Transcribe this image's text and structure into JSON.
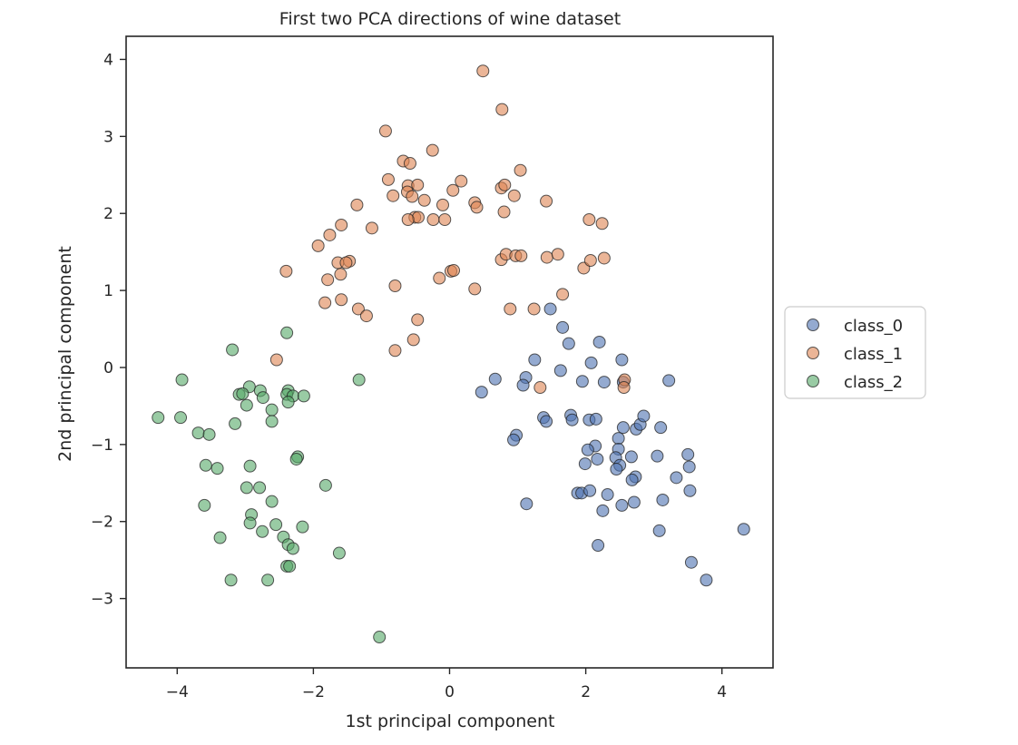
{
  "chart_data": {
    "type": "scatter",
    "title": "First two PCA directions of wine dataset",
    "xlabel": "1st principal component",
    "ylabel": "2nd principal component",
    "xlim": [
      -4.75,
      4.75
    ],
    "ylim": [
      -3.9,
      4.3
    ],
    "xticks": [
      -4,
      -2,
      0,
      2,
      4
    ],
    "yticks": [
      -3,
      -2,
      -1,
      0,
      1,
      2,
      3,
      4
    ],
    "grid": false,
    "legend_position": "outside right, center",
    "series": [
      {
        "name": "class_0",
        "color": "#4c72b0",
        "points": [
          [
            1.48,
            0.76
          ],
          [
            1.66,
            0.52
          ],
          [
            1.75,
            0.31
          ],
          [
            2.2,
            0.33
          ],
          [
            2.53,
            0.1
          ],
          [
            3.22,
            -0.17
          ],
          [
            2.55,
            -0.19
          ],
          [
            1.25,
            0.1
          ],
          [
            1.63,
            -0.04
          ],
          [
            0.67,
            -0.15
          ],
          [
            0.47,
            -0.32
          ],
          [
            1.12,
            -0.13
          ],
          [
            1.08,
            -0.23
          ],
          [
            1.95,
            -0.18
          ],
          [
            2.08,
            0.06
          ],
          [
            2.27,
            -0.19
          ],
          [
            1.38,
            -0.65
          ],
          [
            1.42,
            -0.7
          ],
          [
            1.78,
            -0.62
          ],
          [
            1.8,
            -0.68
          ],
          [
            0.98,
            -0.88
          ],
          [
            0.94,
            -0.94
          ],
          [
            2.05,
            -0.68
          ],
          [
            2.15,
            -0.67
          ],
          [
            2.55,
            -0.78
          ],
          [
            2.74,
            -0.8
          ],
          [
            2.8,
            -0.74
          ],
          [
            2.85,
            -0.63
          ],
          [
            3.1,
            -0.78
          ],
          [
            2.48,
            -0.92
          ],
          [
            2.48,
            -1.06
          ],
          [
            2.14,
            -1.02
          ],
          [
            2.03,
            -1.07
          ],
          [
            2.17,
            -1.19
          ],
          [
            2.44,
            -1.17
          ],
          [
            2.5,
            -1.27
          ],
          [
            2.45,
            -1.32
          ],
          [
            2.67,
            -1.16
          ],
          [
            3.05,
            -1.15
          ],
          [
            3.5,
            -1.13
          ],
          [
            3.52,
            -1.29
          ],
          [
            3.33,
            -1.43
          ],
          [
            2.73,
            -1.42
          ],
          [
            2.68,
            -1.46
          ],
          [
            1.99,
            -1.25
          ],
          [
            1.88,
            -1.63
          ],
          [
            1.94,
            -1.63
          ],
          [
            2.06,
            -1.6
          ],
          [
            2.32,
            -1.65
          ],
          [
            2.53,
            -1.79
          ],
          [
            2.71,
            -1.75
          ],
          [
            3.13,
            -1.72
          ],
          [
            3.53,
            -1.6
          ],
          [
            1.13,
            -1.77
          ],
          [
            2.25,
            -1.86
          ],
          [
            2.18,
            -2.31
          ],
          [
            3.08,
            -2.12
          ],
          [
            3.55,
            -2.53
          ],
          [
            3.77,
            -2.76
          ],
          [
            4.32,
            -2.1
          ]
        ]
      },
      {
        "name": "class_1",
        "color": "#dd8452",
        "points": [
          [
            0.49,
            3.85
          ],
          [
            0.77,
            3.35
          ],
          [
            -0.94,
            3.07
          ],
          [
            -0.25,
            2.82
          ],
          [
            -0.68,
            2.68
          ],
          [
            -0.58,
            2.65
          ],
          [
            1.04,
            2.56
          ],
          [
            -0.9,
            2.44
          ],
          [
            -0.61,
            2.36
          ],
          [
            -0.47,
            2.37
          ],
          [
            -0.62,
            2.28
          ],
          [
            -0.55,
            2.22
          ],
          [
            -0.83,
            2.23
          ],
          [
            0.17,
            2.42
          ],
          [
            0.05,
            2.3
          ],
          [
            0.76,
            2.33
          ],
          [
            0.81,
            2.37
          ],
          [
            0.95,
            2.23
          ],
          [
            -0.37,
            2.17
          ],
          [
            0.37,
            2.14
          ],
          [
            0.4,
            2.08
          ],
          [
            -0.1,
            2.11
          ],
          [
            1.42,
            2.16
          ],
          [
            -1.36,
            2.11
          ],
          [
            0.8,
            2.02
          ],
          [
            -0.51,
            1.95
          ],
          [
            -0.46,
            1.95
          ],
          [
            -0.61,
            1.92
          ],
          [
            -0.24,
            1.92
          ],
          [
            -0.07,
            1.92
          ],
          [
            2.05,
            1.92
          ],
          [
            2.24,
            1.87
          ],
          [
            -1.59,
            1.85
          ],
          [
            -1.76,
            1.72
          ],
          [
            -1.14,
            1.81
          ],
          [
            -1.93,
            1.58
          ],
          [
            0.76,
            1.4
          ],
          [
            0.83,
            1.47
          ],
          [
            0.97,
            1.45
          ],
          [
            1.05,
            1.45
          ],
          [
            1.43,
            1.43
          ],
          [
            1.59,
            1.47
          ],
          [
            1.97,
            1.29
          ],
          [
            2.07,
            1.39
          ],
          [
            2.27,
            1.42
          ],
          [
            -1.64,
            1.36
          ],
          [
            -1.47,
            1.38
          ],
          [
            -1.52,
            1.36
          ],
          [
            -1.6,
            1.21
          ],
          [
            -1.79,
            1.14
          ],
          [
            -2.4,
            1.25
          ],
          [
            0.02,
            1.25
          ],
          [
            0.06,
            1.26
          ],
          [
            -0.15,
            1.16
          ],
          [
            0.37,
            1.02
          ],
          [
            -0.8,
            1.06
          ],
          [
            -1.59,
            0.88
          ],
          [
            -1.83,
            0.84
          ],
          [
            -1.34,
            0.76
          ],
          [
            -1.22,
            0.67
          ],
          [
            0.89,
            0.76
          ],
          [
            1.24,
            0.76
          ],
          [
            1.66,
            0.95
          ],
          [
            -0.47,
            0.62
          ],
          [
            -0.53,
            0.36
          ],
          [
            -0.8,
            0.22
          ],
          [
            -2.54,
            0.1
          ],
          [
            1.33,
            -0.26
          ],
          [
            2.57,
            -0.16
          ],
          [
            2.56,
            -0.26
          ]
        ]
      },
      {
        "name": "class_2",
        "color": "#55a868",
        "points": [
          [
            -2.39,
            0.45
          ],
          [
            -3.19,
            0.23
          ],
          [
            -3.93,
            -0.16
          ],
          [
            -1.33,
            -0.16
          ],
          [
            -2.94,
            -0.25
          ],
          [
            -2.78,
            -0.3
          ],
          [
            -3.09,
            -0.35
          ],
          [
            -3.04,
            -0.34
          ],
          [
            -2.37,
            -0.3
          ],
          [
            -2.39,
            -0.35
          ],
          [
            -2.74,
            -0.39
          ],
          [
            -2.3,
            -0.37
          ],
          [
            -2.14,
            -0.37
          ],
          [
            -2.37,
            -0.45
          ],
          [
            -2.98,
            -0.49
          ],
          [
            -2.61,
            -0.55
          ],
          [
            -4.28,
            -0.65
          ],
          [
            -3.95,
            -0.65
          ],
          [
            -3.15,
            -0.73
          ],
          [
            -2.61,
            -0.7
          ],
          [
            -3.69,
            -0.85
          ],
          [
            -3.53,
            -0.87
          ],
          [
            -3.58,
            -1.27
          ],
          [
            -3.41,
            -1.31
          ],
          [
            -2.93,
            -1.28
          ],
          [
            -2.23,
            -1.16
          ],
          [
            -2.25,
            -1.19
          ],
          [
            -2.98,
            -1.56
          ],
          [
            -2.79,
            -1.56
          ],
          [
            -1.82,
            -1.53
          ],
          [
            -3.6,
            -1.79
          ],
          [
            -2.61,
            -1.74
          ],
          [
            -2.91,
            -1.91
          ],
          [
            -2.93,
            -2.02
          ],
          [
            -2.75,
            -2.13
          ],
          [
            -2.55,
            -2.04
          ],
          [
            -2.16,
            -2.07
          ],
          [
            -2.44,
            -2.2
          ],
          [
            -2.37,
            -2.3
          ],
          [
            -2.3,
            -2.35
          ],
          [
            -3.37,
            -2.21
          ],
          [
            -2.39,
            -2.58
          ],
          [
            -2.35,
            -2.58
          ],
          [
            -1.62,
            -2.41
          ],
          [
            -3.21,
            -2.76
          ],
          [
            -2.67,
            -2.76
          ],
          [
            -1.03,
            -3.5
          ]
        ]
      }
    ]
  }
}
